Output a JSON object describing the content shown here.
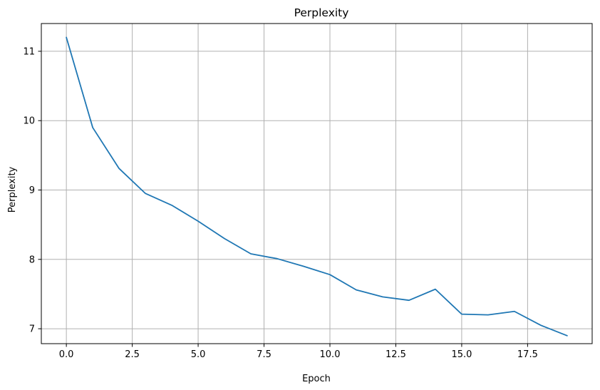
{
  "chart_data": {
    "type": "line",
    "title": "Perplexity",
    "xlabel": "Epoch",
    "ylabel": "Perplexity",
    "xlim": [
      -0.95,
      19.95
    ],
    "ylim": [
      6.785,
      11.4
    ],
    "xticks": [
      0.0,
      2.5,
      5.0,
      7.5,
      10.0,
      12.5,
      15.0,
      17.5
    ],
    "xtick_labels": [
      "0.0",
      "2.5",
      "5.0",
      "7.5",
      "10.0",
      "12.5",
      "15.0",
      "17.5"
    ],
    "yticks": [
      7,
      8,
      9,
      10,
      11
    ],
    "ytick_labels": [
      "7",
      "8",
      "9",
      "10",
      "11"
    ],
    "grid": true,
    "series": [
      {
        "color": "#1f77b4",
        "x": [
          0,
          1,
          2,
          3,
          4,
          5,
          6,
          7,
          8,
          9,
          10,
          11,
          12,
          13,
          14,
          15,
          16,
          17,
          18,
          19
        ],
        "y": [
          11.2,
          9.9,
          9.31,
          8.95,
          8.78,
          8.55,
          8.3,
          8.08,
          8.01,
          7.9,
          7.78,
          7.56,
          7.46,
          7.41,
          7.57,
          7.21,
          7.2,
          7.25,
          7.05,
          6.9
        ]
      }
    ]
  }
}
